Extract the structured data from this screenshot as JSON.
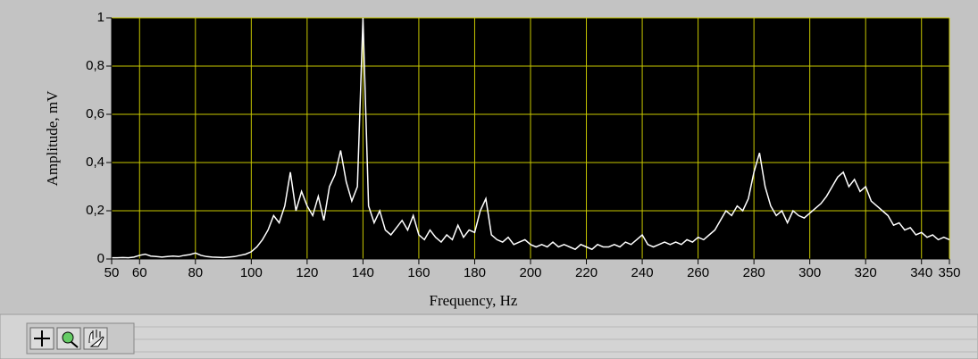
{
  "chart_data": {
    "type": "line",
    "xlabel": "Frequency, Hz",
    "ylabel": "Amplitude, mV",
    "x": [
      50,
      52,
      54,
      56,
      58,
      60,
      62,
      64,
      66,
      68,
      70,
      72,
      74,
      76,
      78,
      80,
      82,
      84,
      86,
      88,
      90,
      92,
      94,
      96,
      98,
      100,
      102,
      104,
      106,
      108,
      110,
      112,
      114,
      116,
      118,
      120,
      122,
      124,
      126,
      128,
      130,
      132,
      134,
      136,
      138,
      140,
      142,
      144,
      146,
      148,
      150,
      152,
      154,
      156,
      158,
      160,
      162,
      164,
      166,
      168,
      170,
      172,
      174,
      176,
      178,
      180,
      182,
      184,
      186,
      188,
      190,
      192,
      194,
      196,
      198,
      200,
      202,
      204,
      206,
      208,
      210,
      212,
      214,
      216,
      218,
      220,
      222,
      224,
      226,
      228,
      230,
      232,
      234,
      236,
      238,
      240,
      242,
      244,
      246,
      248,
      250,
      252,
      254,
      256,
      258,
      260,
      262,
      264,
      266,
      268,
      270,
      272,
      274,
      276,
      278,
      280,
      282,
      284,
      286,
      288,
      290,
      292,
      294,
      296,
      298,
      300,
      302,
      304,
      306,
      308,
      310,
      312,
      314,
      316,
      318,
      320,
      322,
      324,
      326,
      328,
      330,
      332,
      334,
      336,
      338,
      340,
      342,
      344,
      346,
      348,
      350
    ],
    "series": [
      {
        "name": "Amplitude",
        "color": "#ffffff",
        "values": [
          0.005,
          0.005,
          0.006,
          0.005,
          0.008,
          0.015,
          0.02,
          0.012,
          0.01,
          0.008,
          0.01,
          0.012,
          0.01,
          0.015,
          0.018,
          0.025,
          0.015,
          0.01,
          0.008,
          0.007,
          0.006,
          0.008,
          0.01,
          0.015,
          0.02,
          0.03,
          0.05,
          0.08,
          0.12,
          0.18,
          0.15,
          0.22,
          0.36,
          0.2,
          0.28,
          0.22,
          0.18,
          0.26,
          0.16,
          0.3,
          0.35,
          0.45,
          0.32,
          0.24,
          0.3,
          1.0,
          0.22,
          0.15,
          0.2,
          0.12,
          0.1,
          0.13,
          0.16,
          0.12,
          0.18,
          0.1,
          0.08,
          0.12,
          0.09,
          0.07,
          0.1,
          0.08,
          0.14,
          0.09,
          0.12,
          0.11,
          0.2,
          0.25,
          0.1,
          0.08,
          0.07,
          0.09,
          0.06,
          0.07,
          0.08,
          0.06,
          0.05,
          0.06,
          0.05,
          0.07,
          0.05,
          0.06,
          0.05,
          0.04,
          0.06,
          0.05,
          0.04,
          0.06,
          0.05,
          0.05,
          0.06,
          0.05,
          0.07,
          0.06,
          0.08,
          0.1,
          0.06,
          0.05,
          0.06,
          0.07,
          0.06,
          0.07,
          0.06,
          0.08,
          0.07,
          0.09,
          0.08,
          0.1,
          0.12,
          0.16,
          0.2,
          0.18,
          0.22,
          0.2,
          0.25,
          0.36,
          0.44,
          0.3,
          0.22,
          0.18,
          0.2,
          0.15,
          0.2,
          0.18,
          0.17,
          0.19,
          0.21,
          0.23,
          0.26,
          0.3,
          0.34,
          0.36,
          0.3,
          0.33,
          0.28,
          0.3,
          0.24,
          0.22,
          0.2,
          0.18,
          0.14,
          0.15,
          0.12,
          0.13,
          0.1,
          0.11,
          0.09,
          0.1,
          0.08,
          0.09,
          0.08
        ]
      }
    ],
    "xlim": [
      50,
      350
    ],
    "ylim": [
      0,
      1
    ],
    "xticks": [
      50,
      60,
      80,
      100,
      120,
      140,
      160,
      180,
      200,
      220,
      240,
      260,
      280,
      300,
      320,
      340,
      350
    ],
    "yticks": [
      0,
      {
        "value": 0.2,
        "label": "0,2"
      },
      {
        "value": 0.4,
        "label": "0,4"
      },
      {
        "value": 0.6,
        "label": "0,6"
      },
      {
        "value": 0.8,
        "label": "0,8"
      },
      1
    ],
    "grid": true,
    "background": "#000000",
    "grid_color": "#c8c800"
  }
}
